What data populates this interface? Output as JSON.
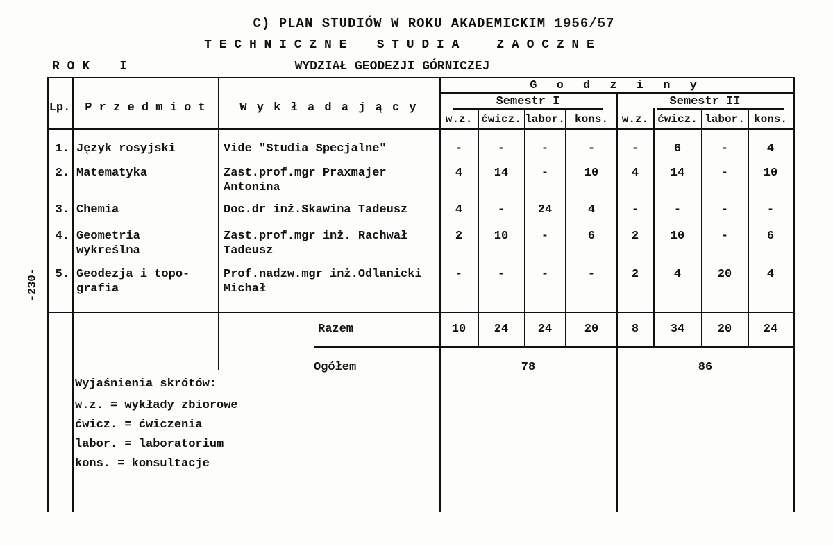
{
  "page": {
    "title": "C) PLAN STUDIÓW W ROKU AKADEMICKIM 1956/57",
    "subtitle": "T E C H N I C Z N E    S T U D I A     Z A O C Z N E",
    "year_label": "R O K    I",
    "faculty": "WYDZIAŁ GEODEZJI GÓRNICZEJ",
    "page_number": "-230-"
  },
  "table": {
    "headers": {
      "lp": "Lp.",
      "subject": "P r z e d m i o t",
      "lecturer": "W y k ł a d a j ą c y",
      "hours": "G o d z i n y",
      "semester1": "Semestr I",
      "semester2": "Semestr II",
      "subcols_sem1": [
        "w.z.",
        "ćwicz.",
        "labor.",
        "kons."
      ],
      "subcols_sem2": [
        "w.z.",
        "ćwicz.",
        "labor.",
        "kons."
      ]
    },
    "rows": [
      {
        "lp": "1.",
        "subject": "Język rosyjski",
        "lecturer": "Vide \"Studia Specjalne\"",
        "hours": [
          "-",
          "-",
          "-",
          "-",
          "-",
          "6",
          "-",
          "4"
        ]
      },
      {
        "lp": "2.",
        "subject": "Matematyka",
        "lecturer": "Zast.prof.mgr Praxmajer\nAntonina",
        "hours": [
          "4",
          "14",
          "-",
          "10",
          "4",
          "14",
          "-",
          "10"
        ]
      },
      {
        "lp": "3.",
        "subject": "Chemia",
        "lecturer": "Doc.dr inż.Skawina Tadeusz",
        "hours": [
          "4",
          "-",
          "24",
          "4",
          "-",
          "-",
          "-",
          "-"
        ]
      },
      {
        "lp": "4.",
        "subject": "Geometria\nwykreślna",
        "lecturer": "Zast.prof.mgr inż. Rachwał\nTadeusz",
        "hours": [
          "2",
          "10",
          "-",
          "6",
          "2",
          "10",
          "-",
          "6"
        ]
      },
      {
        "lp": "5.",
        "subject": "Geodezja i topo-\ngrafia",
        "lecturer": "Prof.nadzw.mgr inż.Odlanicki\nMichał",
        "hours": [
          "-",
          "-",
          "-",
          "-",
          "2",
          "4",
          "20",
          "4"
        ]
      }
    ],
    "summary": {
      "razem_label": "Razem",
      "razem": [
        "10",
        "24",
        "24",
        "20",
        "8",
        "34",
        "20",
        "24"
      ],
      "ogolem_label": "Ogółem",
      "ogolem_sem1": "78",
      "ogolem_sem2": "86"
    }
  },
  "legend": {
    "title": "Wyjaśnienia skrótów:",
    "items": [
      "w.z. = wykłady zbiorowe",
      "ćwicz. = ćwiczenia",
      "labor. = laboratorium",
      "kons. = konsultacje"
    ]
  }
}
